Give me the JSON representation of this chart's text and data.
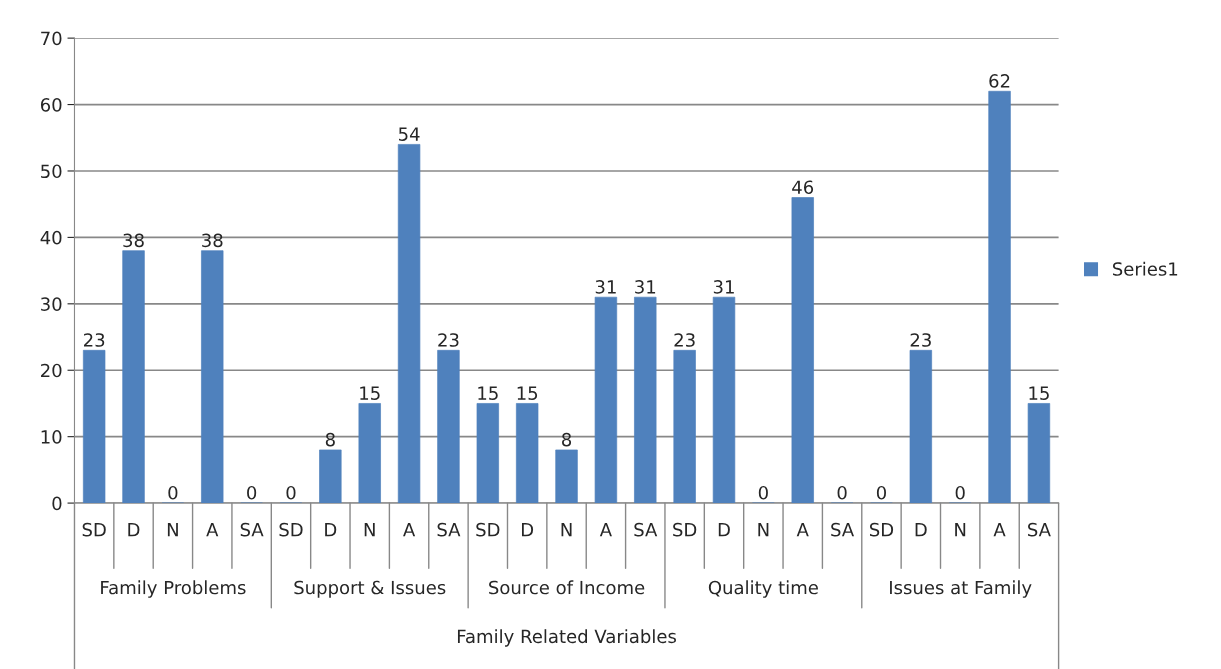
{
  "chart_data": {
    "type": "bar",
    "categories": [
      "SD",
      "D",
      "N",
      "A",
      "SA",
      "SD",
      "D",
      "N",
      "A",
      "SA",
      "SD",
      "D",
      "N",
      "A",
      "SA",
      "SD",
      "D",
      "N",
      "A",
      "SA",
      "SD",
      "D",
      "N",
      "A",
      "SA"
    ],
    "series": [
      {
        "name": "Series1",
        "color": "#4f81bd",
        "values": [
          23,
          38,
          0,
          38,
          0,
          0,
          8,
          15,
          54,
          23,
          15,
          15,
          8,
          31,
          31,
          23,
          31,
          0,
          46,
          0,
          0,
          23,
          0,
          62,
          15
        ]
      }
    ],
    "annotations": [
      "Family Problems",
      "Support & Issues",
      "Source of Income",
      "Quality time",
      "Issues at Family",
      "Family Related Variables"
    ],
    "ylim": [
      0,
      70
    ],
    "yticks": [
      0,
      10,
      20,
      30,
      40,
      50,
      60,
      70
    ],
    "grid": "y",
    "legend": "right",
    "data_labels": true
  }
}
